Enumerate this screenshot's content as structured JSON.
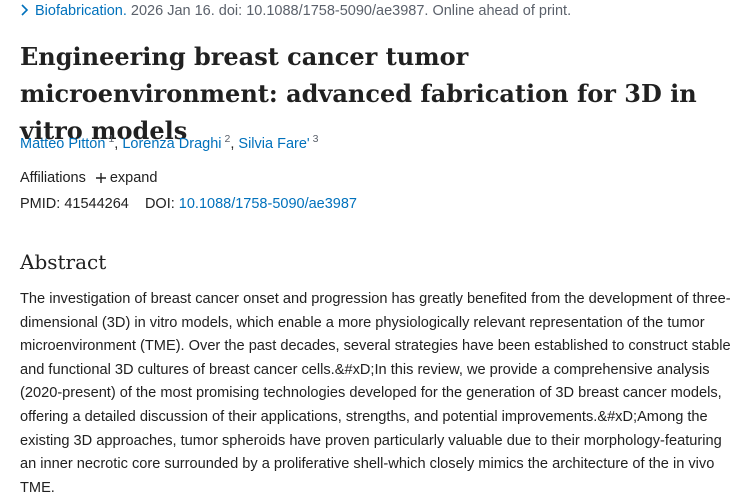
{
  "citation": {
    "journal": "Biofabrication.",
    "details": "2026 Jan 16. doi: 10.1088/1758-5090/ae3987. Online ahead of print."
  },
  "title": "Engineering breast cancer tumor microenvironment: advanced fabrication for 3D in vitro models",
  "authors": [
    {
      "name": "Matteo Pitton",
      "affiliation": "1"
    },
    {
      "name": "Lorenza Draghi",
      "affiliation": "2"
    },
    {
      "name": "Silvia Fare'",
      "affiliation": "3"
    }
  ],
  "affiliations": {
    "label": "Affiliations",
    "toggle": "expand"
  },
  "identifiers": {
    "pmid_label": "PMID:",
    "pmid": "41544264",
    "doi_label": "DOI:",
    "doi": "10.1088/1758-5090/ae3987"
  },
  "abstract": {
    "heading": "Abstract",
    "text": "The investigation of breast cancer onset and progression has greatly benefited from the development of three-dimensional (3D) in vitro models, which enable a more physiologically relevant representation of the tumor microenvironment (TME). Over the past decades, several strategies have been established to construct stable and functional 3D cultures of breast cancer cells.&#xD;In this review, we provide a comprehensive analysis (2020-present) of the most promising technologies developed for the generation of 3D breast cancer models, offering a detailed discussion of their applications, strengths, and potential improvements.&#xD;Among the existing 3D approaches, tumor spheroids have proven particularly valuable due to their morphology-featuring an inner necrotic core surrounded by a proliferative shell-which closely mimics the architecture of the in vivo TME."
  }
}
